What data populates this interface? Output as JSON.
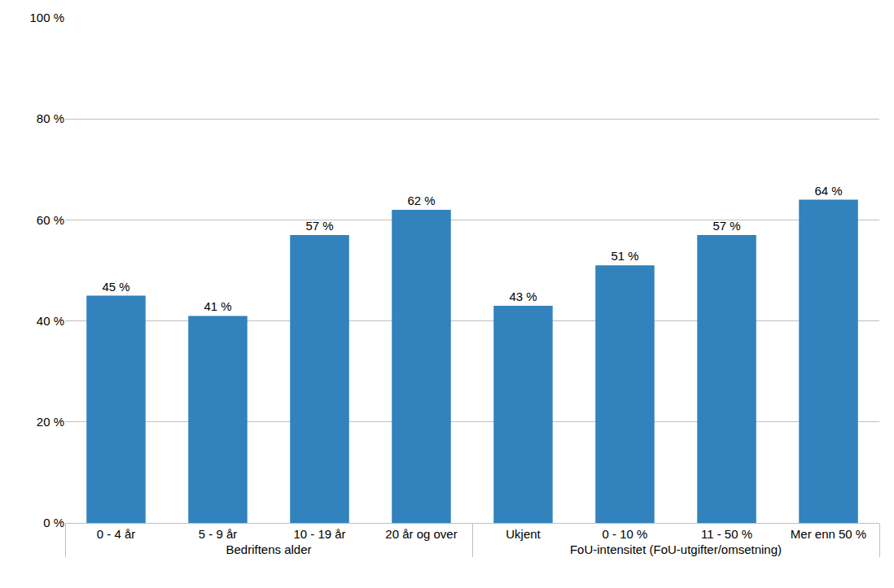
{
  "chart_data": {
    "type": "bar",
    "categories": [
      "0 - 4 år",
      "5 - 9 år",
      "10 - 19 år",
      "20 år og over",
      "Ukjent",
      "0 - 10 %",
      "11 - 50 %",
      "Mer enn 50 %"
    ],
    "groups": [
      "Bedriftens alder",
      "Bedriftens alder",
      "Bedriftens alder",
      "Bedriftens alder",
      "FoU-intensitet (FoU-utgifter/omsetning)",
      "FoU-intensitet (FoU-utgifter/omsetning)",
      "FoU-intensitet (FoU-utgifter/omsetning)",
      "FoU-intensitet (FoU-utgifter/omsetning)"
    ],
    "values": [
      45,
      41,
      57,
      62,
      43,
      51,
      57,
      64
    ],
    "value_labels": [
      "45 %",
      "41 %",
      "57 %",
      "62 %",
      "43 %",
      "51 %",
      "57 %",
      "64 %"
    ],
    "color": "#3182bd",
    "ylim": [
      0,
      100
    ],
    "yticks": [
      {
        "value": 0,
        "label": "0 %"
      },
      {
        "value": 20,
        "label": "20 %"
      },
      {
        "value": 40,
        "label": "40 %"
      },
      {
        "value": 60,
        "label": "60 %"
      },
      {
        "value": 80,
        "label": "80 %"
      },
      {
        "value": 100,
        "label": "100 %"
      }
    ],
    "grid": true,
    "data_labels": true
  }
}
